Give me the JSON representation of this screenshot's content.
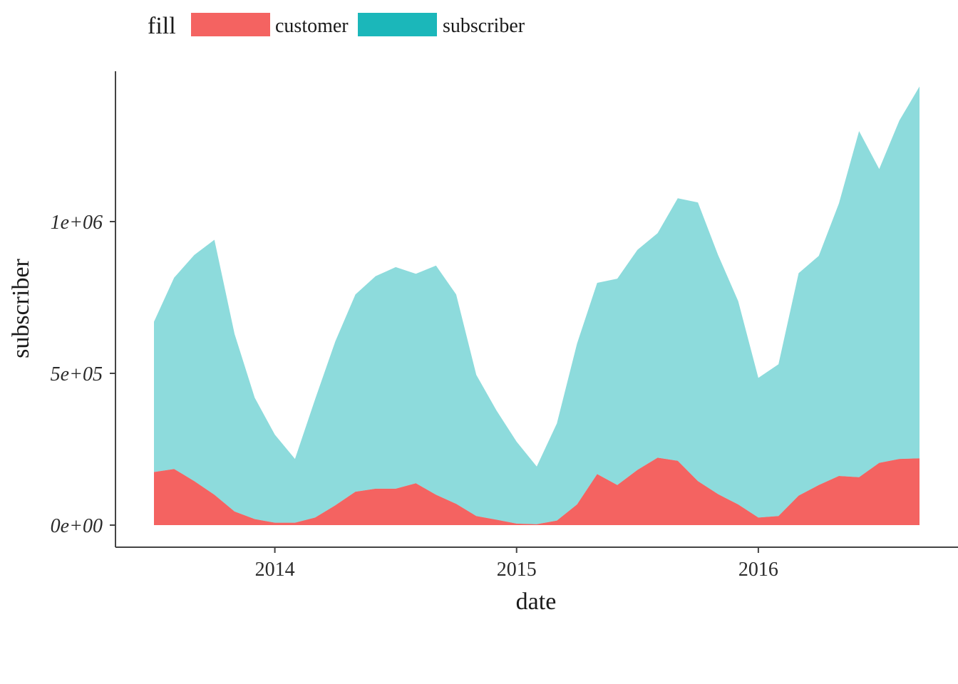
{
  "chart_data": {
    "type": "area",
    "stacked": true,
    "xlabel": "date",
    "ylabel": "subscriber",
    "x_ticks": [
      "2014",
      "2015",
      "2016"
    ],
    "x_tick_values": [
      "2014-01-01",
      "2015-01-01",
      "2016-01-01"
    ],
    "xlim": [
      "2013-07-01",
      "2016-09-01"
    ],
    "y_ticks": [
      "0e+00",
      "5e+05",
      "1e+06"
    ],
    "y_tick_values": [
      0,
      500000,
      1000000
    ],
    "ylim": [
      0,
      1420000
    ],
    "grid": false,
    "legend": {
      "title": "fill",
      "position": "top",
      "entries": [
        {
          "label": "customer",
          "color": "#F46361"
        },
        {
          "label": "subscriber",
          "color": "#1BB7BA"
        }
      ]
    },
    "x": [
      "2013-07",
      "2013-08",
      "2013-09",
      "2013-10",
      "2013-11",
      "2013-12",
      "2014-01",
      "2014-02",
      "2014-03",
      "2014-04",
      "2014-05",
      "2014-06",
      "2014-07",
      "2014-08",
      "2014-09",
      "2014-10",
      "2014-11",
      "2014-12",
      "2015-01",
      "2015-02",
      "2015-03",
      "2015-04",
      "2015-05",
      "2015-06",
      "2015-07",
      "2015-08",
      "2015-09",
      "2015-10",
      "2015-11",
      "2015-12",
      "2016-01",
      "2016-02",
      "2016-03",
      "2016-04",
      "2016-05",
      "2016-06",
      "2016-07",
      "2016-08",
      "2016-09"
    ],
    "series": [
      {
        "name": "customer",
        "color": "#F46361",
        "fill_opacity": 1,
        "values": [
          175000,
          185000,
          145000,
          100000,
          45000,
          20000,
          8000,
          8000,
          25000,
          65000,
          110000,
          120000,
          120000,
          138000,
          100000,
          70000,
          30000,
          18000,
          5000,
          3000,
          15000,
          68000,
          168000,
          132000,
          182000,
          222000,
          212000,
          145000,
          102000,
          68000,
          25000,
          30000,
          97000,
          132000,
          162000,
          158000,
          205000,
          218000,
          220000
        ]
      },
      {
        "name": "subscriber",
        "color": "#1BB7BA",
        "fill_opacity": 0.5,
        "values": [
          495000,
          630000,
          745000,
          840000,
          585000,
          400000,
          290000,
          210000,
          390000,
          540000,
          650000,
          700000,
          730000,
          690000,
          755000,
          690000,
          465000,
          360000,
          270000,
          190000,
          320000,
          530000,
          630000,
          680000,
          725000,
          740000,
          865000,
          918000,
          788000,
          670000,
          460000,
          500000,
          733000,
          755000,
          898000,
          1140000,
          968000,
          1115000,
          1225000
        ]
      }
    ]
  }
}
